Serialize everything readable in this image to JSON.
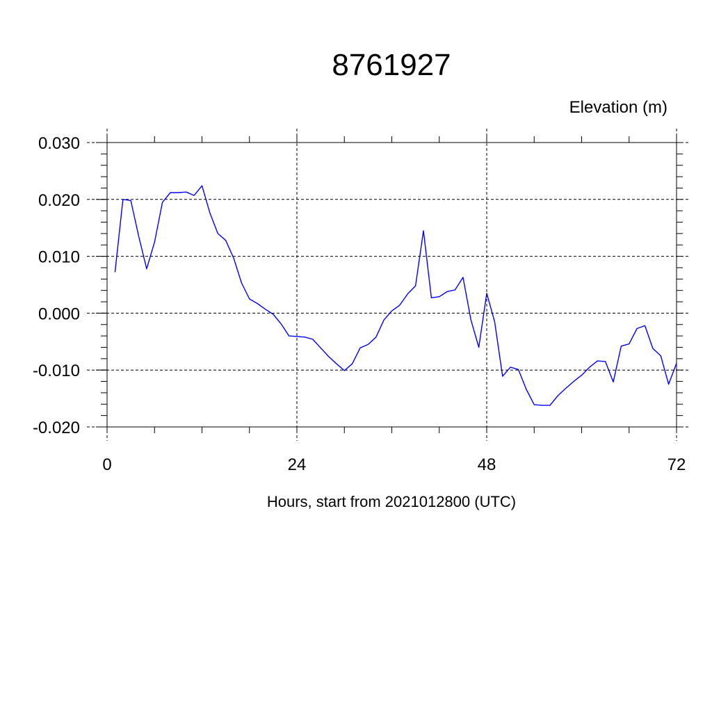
{
  "chart_data": {
    "type": "line",
    "title": "8761927",
    "ylabel": "Elevation (m)",
    "xlabel": "Hours, start from 2021012800 (UTC)",
    "xlim": [
      0,
      72
    ],
    "ylim": [
      -0.02,
      0.03
    ],
    "x_ticks": [
      0,
      24,
      48,
      72
    ],
    "x_tick_labels": [
      "0",
      "24",
      "48",
      "72"
    ],
    "y_ticks": [
      -0.02,
      -0.01,
      0.0,
      0.01,
      0.02,
      0.03
    ],
    "y_tick_labels": [
      "-0.020",
      "-0.010",
      "0.000",
      "0.010",
      "0.020",
      "0.030"
    ],
    "grid": true,
    "line_color": "#0000ff",
    "series": [
      {
        "x": [
          1,
          2,
          3,
          4,
          5,
          6,
          7,
          8,
          9,
          10,
          11,
          12,
          13,
          14,
          15,
          16,
          17,
          18,
          19,
          20,
          21,
          22,
          23,
          24,
          25,
          26,
          27,
          28,
          29,
          30,
          31,
          32,
          33,
          34,
          35,
          36,
          37,
          38,
          39,
          40,
          41,
          42,
          43,
          44,
          45,
          46,
          47,
          48,
          49,
          50,
          51,
          52,
          53,
          54,
          55,
          56,
          57,
          58,
          59,
          60,
          61,
          62,
          63,
          64,
          65,
          66,
          67,
          68,
          69,
          70,
          71,
          72
        ],
        "y": [
          0.0072,
          0.02,
          0.0198,
          0.0135,
          0.0078,
          0.0125,
          0.0195,
          0.0212,
          0.0212,
          0.0213,
          0.0207,
          0.0224,
          0.0176,
          0.014,
          0.0128,
          0.0097,
          0.0053,
          0.0025,
          0.0017,
          0.0007,
          -0.0002,
          -0.0019,
          -0.004,
          -0.0041,
          -0.0042,
          -0.0046,
          -0.0061,
          -0.0076,
          -0.0089,
          -0.0101,
          -0.0089,
          -0.0061,
          -0.0055,
          -0.0042,
          -0.0012,
          0.0004,
          0.0014,
          0.0034,
          0.0048,
          0.0145,
          0.0027,
          0.0029,
          0.0038,
          0.0041,
          0.0063,
          -0.0012,
          -0.006,
          0.0035,
          -0.0015,
          -0.0111,
          -0.0095,
          -0.0099,
          -0.0134,
          -0.0161,
          -0.0162,
          -0.0162,
          -0.0145,
          -0.0132,
          -0.012,
          -0.0109,
          -0.0095,
          -0.0084,
          -0.0085,
          -0.0121,
          -0.0058,
          -0.0054,
          -0.0027,
          -0.0022,
          -0.0062,
          -0.0075,
          -0.0125,
          -0.0088
        ]
      }
    ]
  }
}
